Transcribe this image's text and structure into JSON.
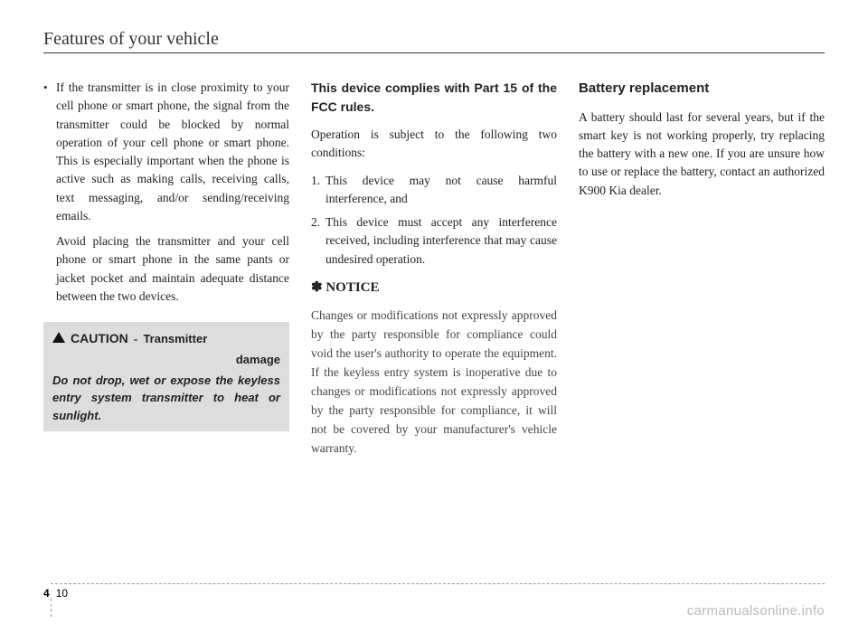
{
  "header": {
    "title": "Features of your vehicle"
  },
  "col1": {
    "bullet": "•",
    "para1": "If the transmitter is in close proximity to your cell phone or smart phone, the signal from the transmitter could be blocked by normal operation of your cell phone or smart phone. This is especially important when the phone is active such as making calls, receiving calls, text messaging, and/or sending/receiving emails.",
    "para2": "Avoid placing the transmitter and your cell phone or smart phone in the same pants or jacket pocket and maintain adequate distance between the two devices.",
    "caution": {
      "word": "CAUTION",
      "hyphen": "-",
      "sub_line1": "Transmitter",
      "sub_line2": "damage",
      "body": "Do not drop, wet or expose the keyless entry system transmitter to heat or sunlight."
    }
  },
  "col2": {
    "fcc_heading": "This device complies with Part 15 of the FCC rules.",
    "fcc_intro": "Operation is subject to the following two conditions:",
    "item1_num": "1.",
    "item1": "This device may not cause harmful interference, and",
    "item2_num": "2.",
    "item2": "This device must accept any interference received, including interference that may cause undesired operation.",
    "notice_symbol": "✽",
    "notice_label": "NOTICE",
    "notice_body": "Changes or modifications not expressly approved by the party responsible for compliance could void the user's authority to operate the equipment. If the keyless entry system is inoperative due to changes or modifications not expressly approved by the party responsible for compliance, it will not be covered by your manufacturer's vehicle warranty."
  },
  "col3": {
    "heading": "Battery replacement",
    "body": "A battery should last for several years, but if the smart key is not working properly, try replacing the battery with a new one. If you are unsure how to use or replace the battery, contact an authorized K900 Kia dealer."
  },
  "footer": {
    "section": "4",
    "page": "10"
  },
  "watermark": "carmanualsonline.info"
}
